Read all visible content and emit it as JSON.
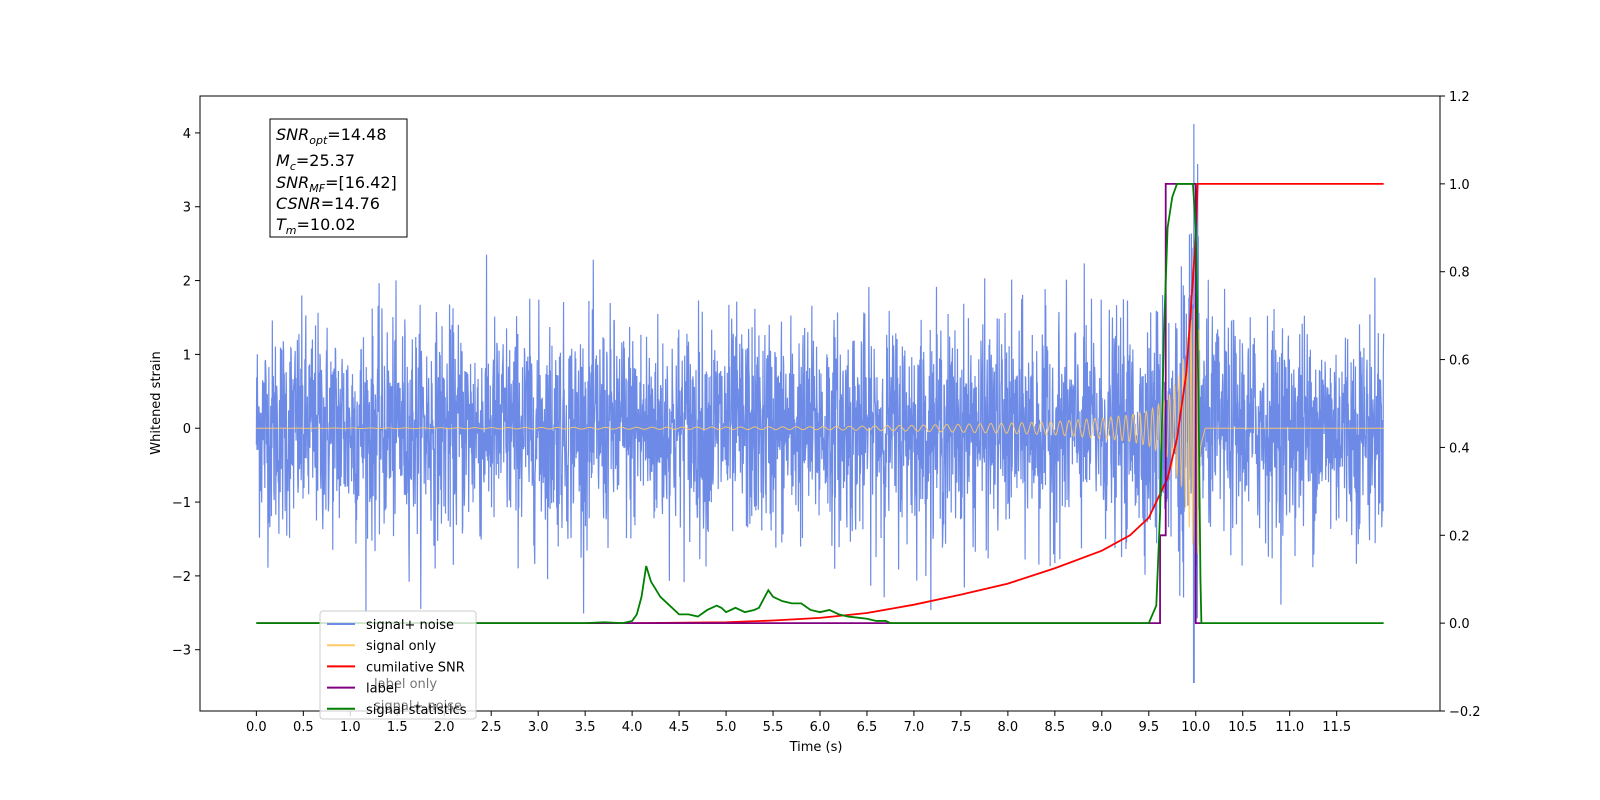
{
  "chart_data": {
    "type": "line",
    "title": "",
    "xlabel": "Time (s)",
    "ylabel": "Whitened strain",
    "xlim": [
      -0.6,
      12.6
    ],
    "ylim": [
      -3.83,
      4.5
    ],
    "y2lim": [
      -0.2,
      1.2
    ],
    "x_ticks": [
      "0.0",
      "0.5",
      "1.0",
      "1.5",
      "2.0",
      "2.5",
      "3.0",
      "3.5",
      "4.0",
      "4.5",
      "5.0",
      "5.5",
      "6.0",
      "6.5",
      "7.0",
      "7.5",
      "8.0",
      "8.5",
      "9.0",
      "9.5",
      "10.0",
      "10.5",
      "11.0",
      "11.5"
    ],
    "y_ticks": [
      "4",
      "3",
      "2",
      "1",
      "0",
      "−1",
      "−2",
      "−3"
    ],
    "y_tick_values": [
      4,
      3,
      2,
      1,
      0,
      -1,
      -2,
      -3
    ],
    "y2_ticks": [
      "1.2",
      "1.0",
      "0.8",
      "0.6",
      "0.4",
      "0.2",
      "0.0",
      "−0.2"
    ],
    "y2_tick_values": [
      1.2,
      1.0,
      0.8,
      0.6,
      0.4,
      0.2,
      0.0,
      -0.2
    ],
    "grid": false,
    "legend_position": "lower-left",
    "series": [
      {
        "name": "signal+ noise",
        "axis": "left",
        "color": "#6d8be6",
        "description": "noisy strain, approx. uniform noise amplitude ±1.5 to ±2.5 over 0–12 s, peak near 10.0 s",
        "envelope": {
          "x": [
            0,
            12
          ],
          "y_range": [
            -2.5,
            2.5
          ]
        },
        "peak": {
          "x": 9.98,
          "y_max": 4.12,
          "y_min": -3.45
        }
      },
      {
        "name": "signal only",
        "axis": "left",
        "color": "#ffc966",
        "description": "chirp waveform growing in amplitude toward merger",
        "x": [
          0,
          6.0,
          7.0,
          8.0,
          8.5,
          9.0,
          9.3,
          9.5,
          9.7,
          9.85,
          9.95,
          10.02,
          10.05,
          10.1,
          12.0
        ],
        "amplitude": [
          0.0,
          0.02,
          0.04,
          0.07,
          0.09,
          0.14,
          0.18,
          0.24,
          0.4,
          0.8,
          1.5,
          1.9,
          0.5,
          0.0,
          0.0
        ]
      },
      {
        "name": "cumilative SNR",
        "axis": "right",
        "color": "#ff0000",
        "x": [
          4.0,
          5.0,
          5.5,
          6.0,
          6.5,
          7.0,
          7.5,
          8.0,
          8.5,
          9.0,
          9.3,
          9.5,
          9.7,
          9.8,
          9.9,
          9.95,
          10.0,
          10.02,
          12.0
        ],
        "values": [
          0.0,
          0.002,
          0.006,
          0.012,
          0.023,
          0.042,
          0.065,
          0.09,
          0.125,
          0.165,
          0.2,
          0.24,
          0.33,
          0.42,
          0.57,
          0.72,
          0.88,
          1.0,
          1.0
        ]
      },
      {
        "name": "label",
        "axis": "right",
        "color": "#800080",
        "x": [
          0.0,
          9.62,
          9.62,
          9.68,
          9.68,
          10.0,
          10.0,
          10.05
        ],
        "values": [
          0.0,
          0.0,
          0.2,
          0.2,
          1.0,
          1.0,
          0.0,
          0.0
        ]
      },
      {
        "name": "label only",
        "axis": "right",
        "color": "#800080",
        "hidden": true,
        "x": [],
        "values": []
      },
      {
        "name": "signal statistics",
        "axis": "right",
        "color": "#008000",
        "x": [
          0.0,
          3.5,
          3.7,
          3.9,
          4.0,
          4.05,
          4.1,
          4.15,
          4.2,
          4.3,
          4.4,
          4.5,
          4.6,
          4.7,
          4.8,
          4.9,
          4.95,
          5.0,
          5.1,
          5.2,
          5.3,
          5.35,
          5.4,
          5.45,
          5.5,
          5.6,
          5.7,
          5.8,
          5.9,
          6.0,
          6.1,
          6.2,
          6.3,
          6.5,
          6.6,
          6.7,
          6.75,
          9.5,
          9.58,
          9.62,
          9.66,
          9.7,
          9.75,
          9.8,
          9.9,
          9.97,
          10.0,
          10.03,
          10.05,
          10.06,
          12.0
        ],
        "values": [
          0.0,
          0.0,
          0.002,
          0.0,
          0.005,
          0.02,
          0.06,
          0.13,
          0.095,
          0.06,
          0.04,
          0.02,
          0.02,
          0.015,
          0.03,
          0.04,
          0.035,
          0.025,
          0.035,
          0.025,
          0.03,
          0.035,
          0.055,
          0.075,
          0.06,
          0.05,
          0.045,
          0.045,
          0.03,
          0.025,
          0.03,
          0.02,
          0.015,
          0.01,
          0.005,
          0.005,
          0.0,
          0.0,
          0.04,
          0.25,
          0.65,
          0.9,
          0.97,
          1.0,
          1.0,
          1.0,
          0.9,
          0.5,
          0.1,
          0.0,
          0.0
        ]
      }
    ],
    "legend": [
      {
        "label": "signal+ noise",
        "color": "#6d8be6"
      },
      {
        "label": "signal only",
        "color": "#ffc966"
      },
      {
        "label": "cumilative SNR",
        "color": "#ff0000"
      },
      {
        "label": "label",
        "color": "#800080"
      },
      {
        "label": "signal statistics",
        "color": "#008000"
      }
    ],
    "legend_occluded_text": [
      "label only",
      "signal+ noise"
    ],
    "annotation_box": {
      "lines": [
        {
          "main": "SNR",
          "sub": "opt",
          "value": "=14.48"
        },
        {
          "main": "M",
          "sub": "c",
          "value": "=25.37"
        },
        {
          "main": "SNR",
          "sub": "MF",
          "value": "=[16.42]"
        },
        {
          "main": "CSNR",
          "sub": "",
          "value": "=14.76"
        },
        {
          "main": "T",
          "sub": "m",
          "value": "=10.02"
        }
      ]
    }
  }
}
